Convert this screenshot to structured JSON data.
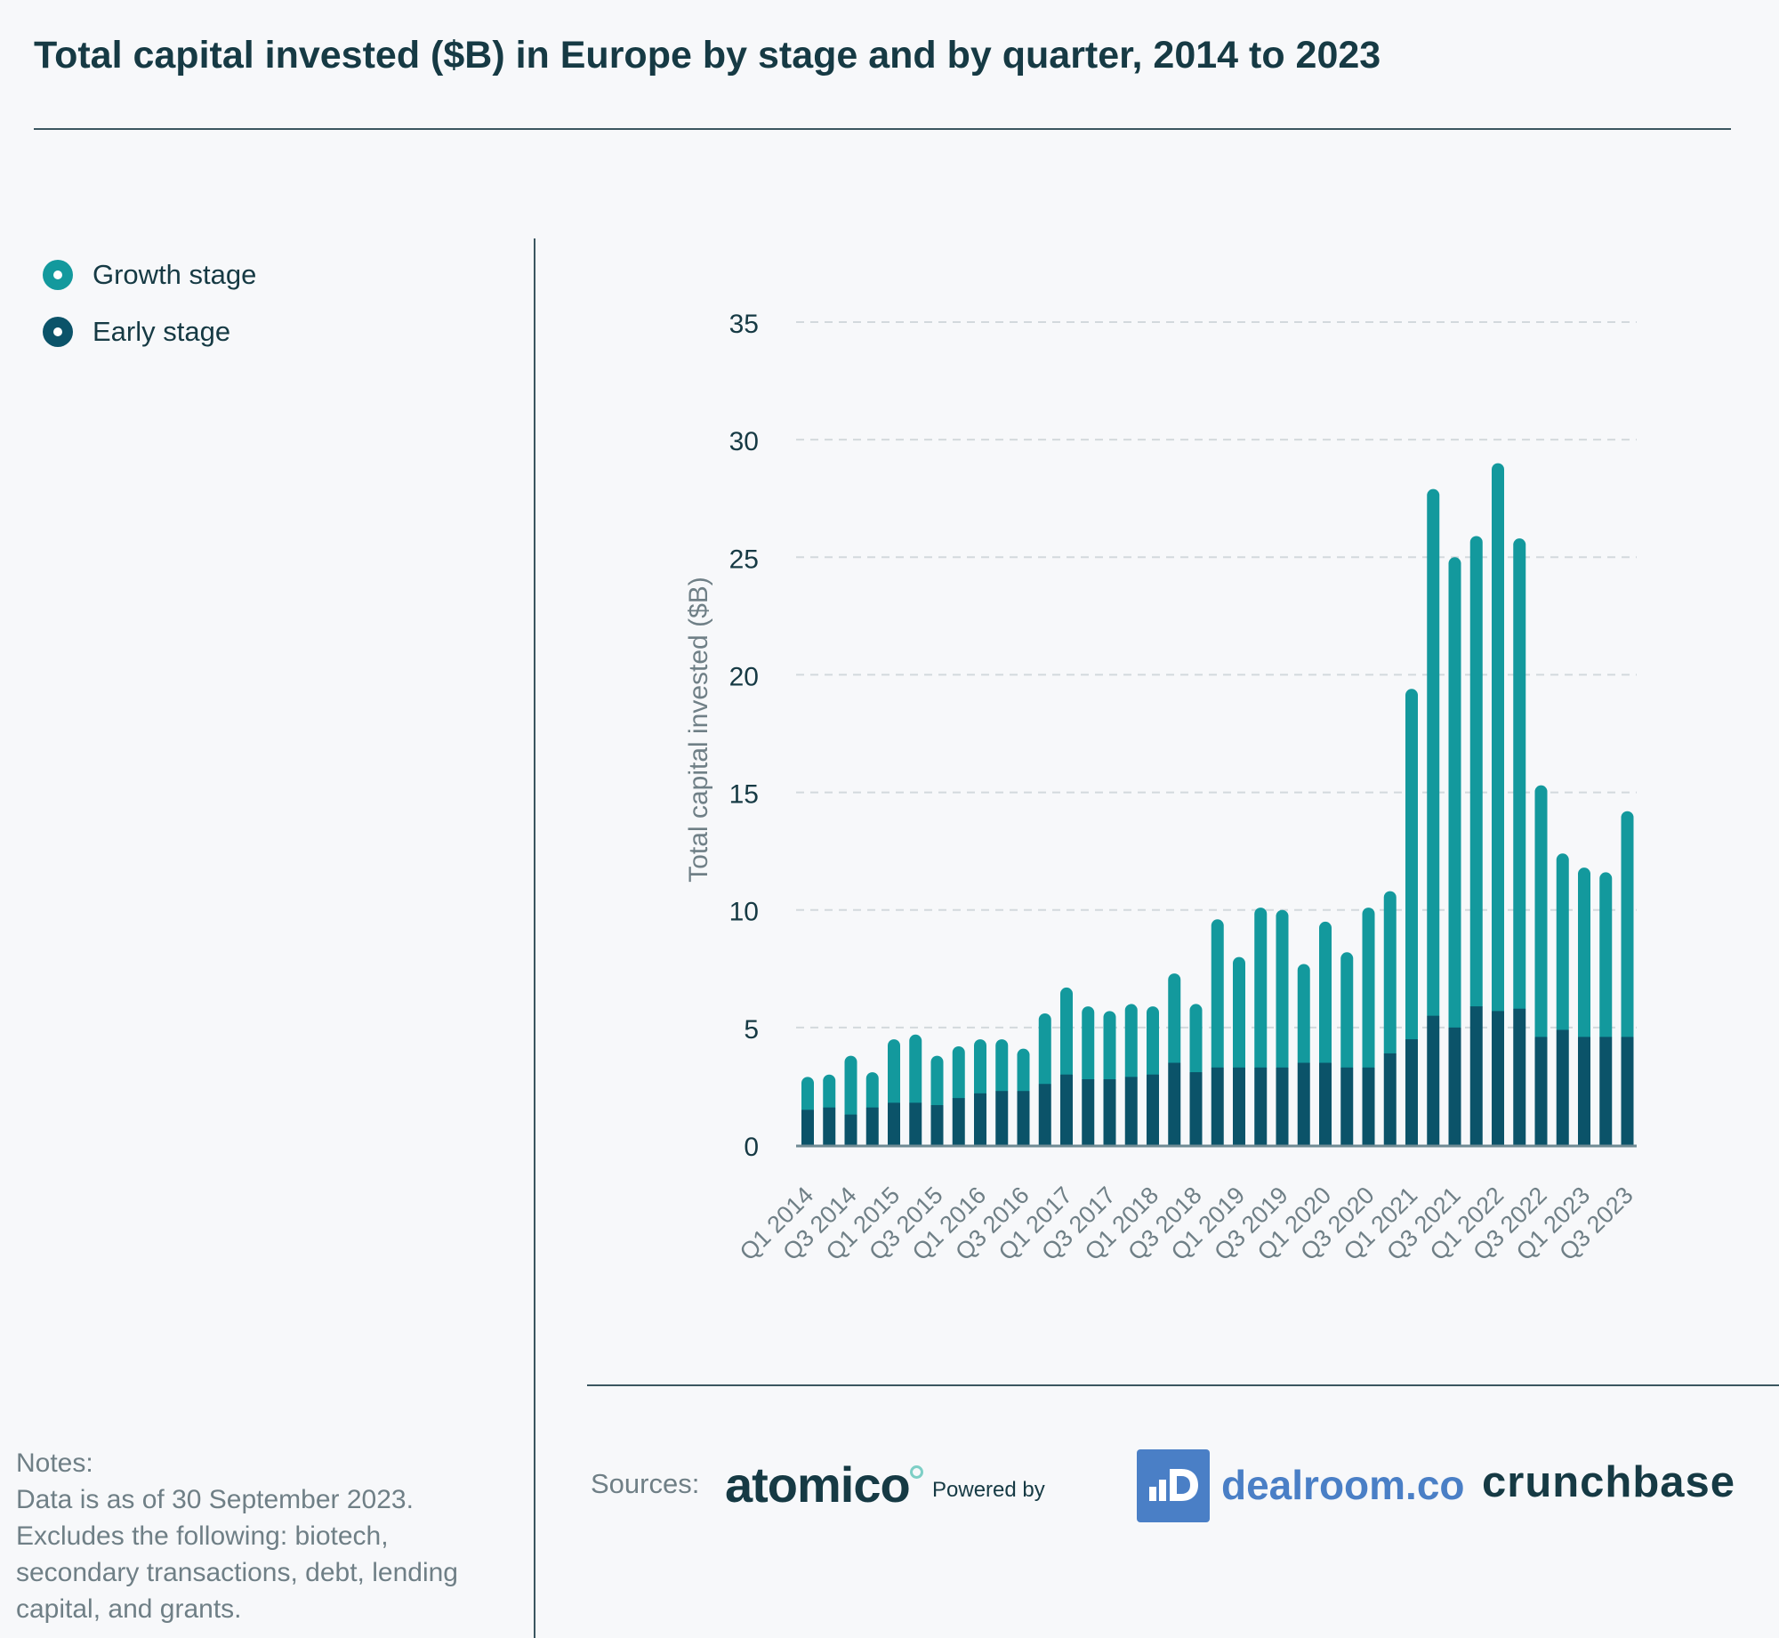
{
  "title": "Total capital invested ($B) in Europe by stage and by quarter, 2014 to 2023",
  "legend": {
    "growth_label": "Growth stage",
    "early_label": "Early stage"
  },
  "colors": {
    "growth": "#13999d",
    "early": "#0b5369",
    "text": "#163a44",
    "muted": "#6f7f86"
  },
  "notes": {
    "heading": "Notes:",
    "line1": "Data is as of 30 September 2023.",
    "line2": "Excludes the following: biotech,",
    "line3": "secondary transactions, debt, lending",
    "line4": "capital, and grants."
  },
  "sources": {
    "label": "Sources:",
    "atomico": "atomico",
    "powered_by": "Powered by",
    "dealroom": "dealroom.co",
    "crunchbase": "crunchbase"
  },
  "chart_data": {
    "type": "bar",
    "stacked": true,
    "ylabel": "Total capital invested ($B)",
    "xlabel": "",
    "ylim": [
      0,
      35
    ],
    "yticks": [
      0,
      5,
      10,
      15,
      20,
      25,
      30,
      35
    ],
    "grid": true,
    "legend_position": "top-left",
    "categories": [
      "Q1 2014",
      "Q2 2014",
      "Q3 2014",
      "Q4 2014",
      "Q1 2015",
      "Q2 2015",
      "Q3 2015",
      "Q4 2015",
      "Q1 2016",
      "Q2 2016",
      "Q3 2016",
      "Q4 2016",
      "Q1 2017",
      "Q2 2017",
      "Q3 2017",
      "Q4 2017",
      "Q1 2018",
      "Q2 2018",
      "Q3 2018",
      "Q4 2018",
      "Q1 2019",
      "Q2 2019",
      "Q3 2019",
      "Q4 2019",
      "Q1 2020",
      "Q2 2020",
      "Q3 2020",
      "Q4 2020",
      "Q1 2021",
      "Q2 2021",
      "Q3 2021",
      "Q4 2021",
      "Q1 2022",
      "Q2 2022",
      "Q3 2022",
      "Q4 2022",
      "Q1 2023",
      "Q2 2023",
      "Q3 2023"
    ],
    "tick_labels": [
      "Q1 2014",
      "Q3 2014",
      "Q1 2015",
      "Q3 2015",
      "Q1 2016",
      "Q3 2016",
      "Q1 2017",
      "Q3 2017",
      "Q1 2018",
      "Q3 2018",
      "Q1 2019",
      "Q3 2019",
      "Q1 2020",
      "Q3 2020",
      "Q1 2021",
      "Q3 2021",
      "Q1 2022",
      "Q3 2022",
      "Q1 2023",
      "Q3 2023"
    ],
    "series": [
      {
        "name": "Early stage",
        "values": [
          1.5,
          1.6,
          1.3,
          1.6,
          1.8,
          1.8,
          1.7,
          2.0,
          2.2,
          2.3,
          2.3,
          2.6,
          3.0,
          2.8,
          2.8,
          2.9,
          3.0,
          3.5,
          3.1,
          3.3,
          3.3,
          3.3,
          3.3,
          3.5,
          3.5,
          3.3,
          3.3,
          3.9,
          4.5,
          5.5,
          5.0,
          5.9,
          5.7,
          5.8,
          4.6,
          4.9,
          4.6,
          4.6,
          4.6
        ]
      },
      {
        "name": "Growth stage",
        "values": [
          1.4,
          1.4,
          2.5,
          1.5,
          2.7,
          2.9,
          2.1,
          2.2,
          2.3,
          2.2,
          1.8,
          3.0,
          3.7,
          3.1,
          2.9,
          3.1,
          2.9,
          3.8,
          2.9,
          6.3,
          4.7,
          6.8,
          6.7,
          4.2,
          6.0,
          4.9,
          6.8,
          6.9,
          14.9,
          22.4,
          20.0,
          20.0,
          23.3,
          20.0,
          10.7,
          7.5,
          7.2,
          7.0,
          9.6
        ]
      }
    ]
  }
}
